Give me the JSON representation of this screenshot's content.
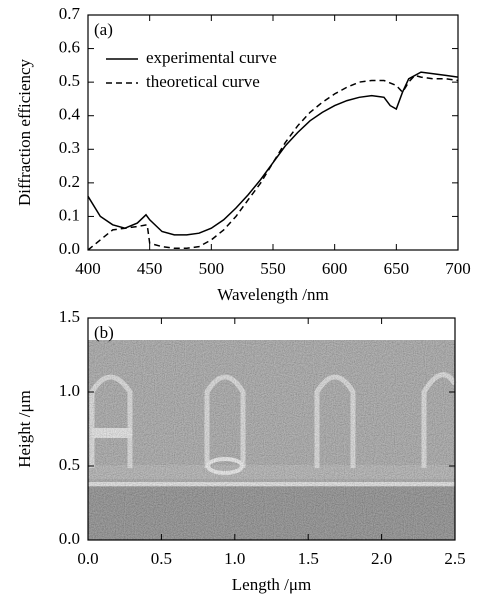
{
  "chart_data": [
    {
      "type": "line",
      "annotation": "(a)",
      "ylabel": "Diffraction efficiency",
      "xlabel": "Wavelength /nm",
      "xlim": [
        400,
        700
      ],
      "xticks": [
        400,
        450,
        500,
        550,
        600,
        650,
        700
      ],
      "ylim": [
        0,
        0.7
      ],
      "yticks": [
        {
          "value": 0,
          "label": "0.0"
        },
        0.1,
        0.2,
        0.3,
        0.4,
        0.5,
        0.6,
        0.7
      ],
      "legend": "upper left",
      "series": [
        {
          "name": "experimental curve",
          "color": "#000000",
          "dash": "solid",
          "x": [
            400,
            410,
            420,
            430,
            440,
            447,
            450,
            460,
            470,
            480,
            490,
            500,
            510,
            520,
            530,
            540,
            550,
            560,
            570,
            580,
            590,
            600,
            610,
            620,
            630,
            640,
            645,
            650,
            655,
            660,
            670,
            680,
            690,
            700
          ],
          "values": [
            0.16,
            0.1,
            0.075,
            0.065,
            0.08,
            0.105,
            0.09,
            0.055,
            0.045,
            0.045,
            0.05,
            0.065,
            0.09,
            0.125,
            0.165,
            0.21,
            0.26,
            0.31,
            0.35,
            0.385,
            0.41,
            0.43,
            0.445,
            0.455,
            0.46,
            0.455,
            0.43,
            0.42,
            0.47,
            0.51,
            0.53,
            0.525,
            0.52,
            0.515
          ]
        },
        {
          "name": "theoretical curve",
          "color": "#000000",
          "dash": "dashed",
          "x": [
            400,
            410,
            420,
            430,
            440,
            448,
            450,
            460,
            470,
            480,
            490,
            500,
            510,
            520,
            530,
            540,
            550,
            560,
            570,
            580,
            590,
            600,
            610,
            620,
            630,
            640,
            650,
            655,
            660,
            665,
            670,
            680,
            690,
            700
          ],
          "values": [
            0,
            0.03,
            0.06,
            0.065,
            0.07,
            0.075,
            0.02,
            0.01,
            0.005,
            0.005,
            0.01,
            0.03,
            0.06,
            0.1,
            0.15,
            0.2,
            0.26,
            0.32,
            0.37,
            0.41,
            0.44,
            0.465,
            0.485,
            0.5,
            0.505,
            0.505,
            0.49,
            0.47,
            0.5,
            0.52,
            0.515,
            0.51,
            0.51,
            0.505
          ]
        }
      ]
    },
    {
      "type": "image",
      "annotation": "(b)",
      "ylabel": "Height /μm",
      "xlabel": "Length /μm",
      "xlim": [
        0,
        2.5
      ],
      "xticks": [
        {
          "value": 0,
          "label": "0.0"
        },
        0.5,
        {
          "value": 1,
          "label": "1.0"
        },
        1.5,
        {
          "value": 2,
          "label": "2.0"
        },
        2.5
      ],
      "ylim": [
        0,
        1.5
      ],
      "yticks": [
        {
          "value": 0,
          "label": "0.0"
        },
        0.5,
        {
          "value": 1,
          "label": "1.0"
        },
        1.5
      ]
    }
  ]
}
